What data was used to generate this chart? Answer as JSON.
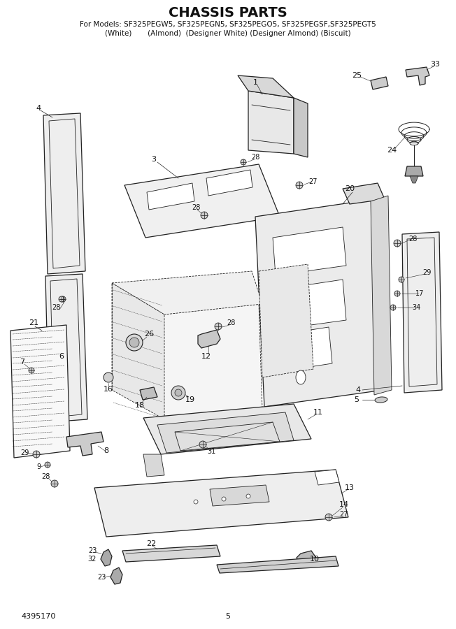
{
  "title": "CHASSIS PARTS",
  "subtitle1": "For Models: SF325PEGW5, SF325PEGN5, SF325PEGO5, SF325PEGSF,SF325PEGT5",
  "subtitle2": "(White)       (Almond)  (Designer White) (Designer Almond) (Biscuit)",
  "part_number": "4395170",
  "page_number": "5",
  "bg_color": "#ffffff",
  "lc": "#222222",
  "tc": "#111111"
}
